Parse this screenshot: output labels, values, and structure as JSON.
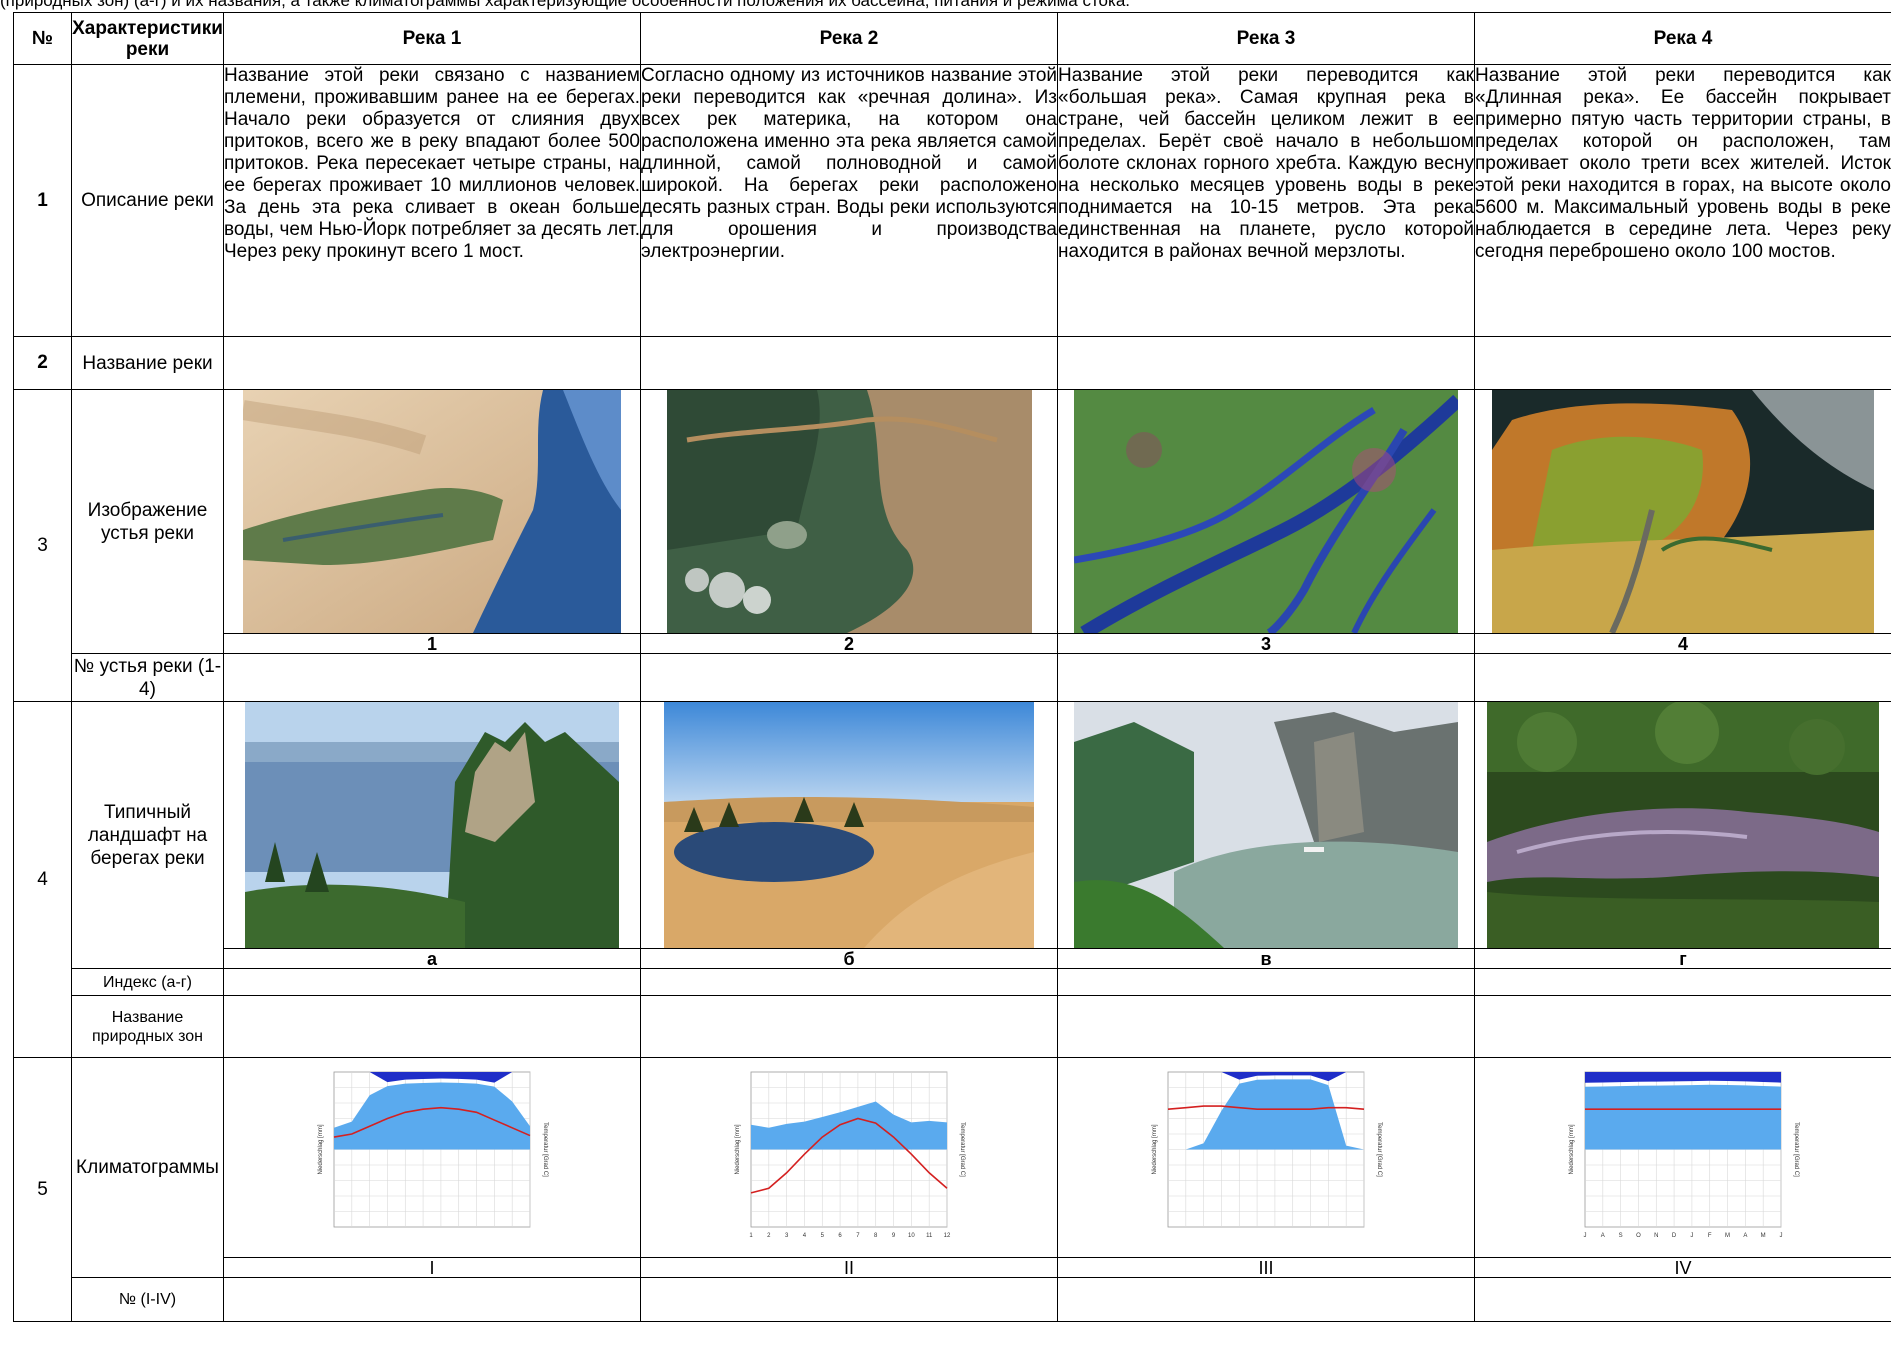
{
  "intro_text": "(природных зон) (а-г) и их названия, а также климатограммы характеризующие особенности положения их бассейна, питания и режима стока.",
  "header": {
    "num": "№",
    "characteristics": "Характеристики реки",
    "rivers": [
      "Река 1",
      "Река 2",
      "Река 3",
      "Река 4"
    ]
  },
  "rows": {
    "r1": {
      "num": "1",
      "label": "Описание реки"
    },
    "r2": {
      "num": "2",
      "label": "Название реки"
    },
    "r3": {
      "num": "3",
      "label": "Изображение устья реки",
      "sub_label": "№ устья реки (1-4)"
    },
    "r4": {
      "num": "4",
      "label": "Типичный ландшафт на берегах реки",
      "sub_label": "Индекс (а-г)",
      "sub_label2": "Название природных зон"
    },
    "r5": {
      "num": "5",
      "label": "Климатограммы",
      "sub_label": "№ (I-IV)"
    }
  },
  "descriptions": [
    "Название этой реки связано с названием племени, проживавшим ранее на ее берегах. Начало реки образуется от слияния двух притоков, всего же в реку впадают более 500 притоков. Река пересекает четыре страны, на ее берегах проживает 10 миллионов человек. За день эта река сливает в океан больше воды, чем Нью-Йорк потребляет за десять лет. Через реку прокинут всего 1 мост.",
    "Согласно одному из источников название этой реки переводится как «речная долина». Из всех рек материка, на котором она расположена именно эта река является самой длинной, самой полноводной и самой широкой. На берегах реки расположено десять разных стран. Воды реки используются для орошения и производства электроэнергии.",
    "Название этой реки переводится как «большая река». Самая крупная река в стране, чей бассейн целиком лежит в ее пределах. Берёт своё начало в небольшом болоте склонах горного хребта. Каждую весну на несколько месяцев уровень воды в реке поднимается на 10-15 метров. Эта река единственная на планете, русло которой находится в районах вечной мерзлоты.",
    "Название этой реки переводится как «Длинная река». Ее бассейн покрывает примерно пятую часть территории страны, в пределах которой он расположен, там проживает около трети всех жителей. Исток этой реки находится в горах, на высоте около 5600 м. Максимальный уровень воды в реке наблюдается в середине лета. Через реку сегодня переброшено около 100 мостов."
  ],
  "mouth_captions": [
    "1",
    "2",
    "3",
    "4"
  ],
  "landscape_captions": [
    "а",
    "б",
    "в",
    "г"
  ],
  "climate_captions": [
    "I",
    "II",
    "III",
    "IV"
  ],
  "photos": {
    "mouths": [
      "satellite-delta-desert",
      "satellite-estuary-muddy",
      "satellite-delta-green",
      "satellite-delta-tundra"
    ],
    "landscapes": [
      "river-cliff-forest",
      "desert-oasis-lake",
      "mountain-gorge-river",
      "tropical-forest-river"
    ]
  },
  "climatograms": [
    {
      "ylabel_left": "Niederschlag [mm]",
      "ylabel_right": "Temperatur [Grad C]",
      "precip": [
        28,
        36,
        70,
        118,
        150,
        158,
        165,
        160,
        150,
        112,
        62,
        30
      ],
      "temp": [
        8,
        10,
        15,
        20,
        24,
        26,
        27,
        26,
        24,
        19,
        14,
        9
      ]
    },
    {
      "ylabel_left": "Niederschlag [mm]",
      "ylabel_right": "Temperatur [Grad C]",
      "x_ticks": [
        "1",
        "2",
        "3",
        "4",
        "5",
        "6",
        "7",
        "8",
        "9",
        "10",
        "11",
        "12"
      ],
      "precip": [
        32,
        28,
        33,
        36,
        42,
        48,
        55,
        62,
        45,
        35,
        37,
        35
      ],
      "temp": [
        -28,
        -25,
        -15,
        -3,
        8,
        16,
        20,
        17,
        8,
        -3,
        -15,
        -25
      ]
    },
    {
      "ylabel_left": "Niederschlag [mm]",
      "ylabel_right": "Temperatur [Grad C]",
      "precip": [
        0,
        0,
        8,
        50,
        150,
        200,
        205,
        205,
        205,
        130,
        5,
        0
      ],
      "temp": [
        26,
        27,
        28,
        28,
        27,
        26,
        26,
        26,
        26,
        27,
        27,
        26
      ]
    },
    {
      "ylabel_left": "Niederschlag [mm]",
      "ylabel_right": "Temperatur [Grad C]",
      "x_ticks": [
        "J",
        "A",
        "S",
        "O",
        "N",
        "D",
        "J",
        "F",
        "M",
        "A",
        "M",
        "J"
      ],
      "precip": [
        110,
        113,
        118,
        122,
        125,
        127,
        130,
        135,
        132,
        128,
        120,
        112
      ],
      "temp": [
        26,
        26,
        26,
        26,
        26,
        26,
        26,
        26,
        26,
        26,
        26,
        26
      ]
    }
  ],
  "colors": {
    "precip_fill": "#5aaaee",
    "precip_excess": "#1f2ec8",
    "temp_line": "#d42020",
    "border": "#000000"
  }
}
